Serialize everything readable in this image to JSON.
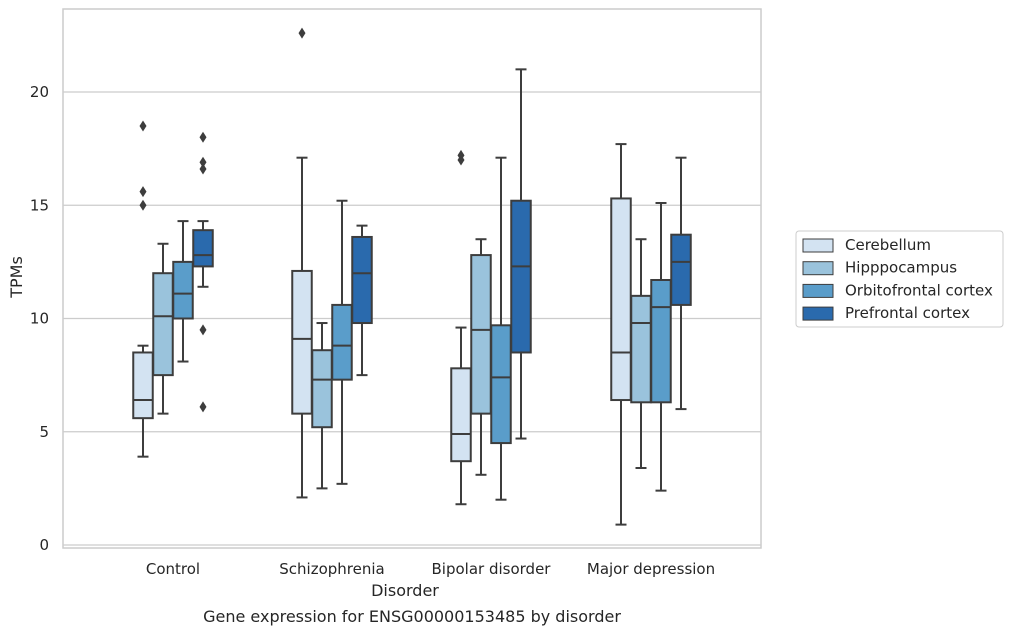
{
  "caption": "Gene expression for ENSG00000153485 by disorder",
  "chart_data": {
    "type": "box",
    "xlabel": "Disorder",
    "ylabel": "TPMs",
    "ylim": [
      -0.2,
      23.4
    ],
    "yticks": [
      0,
      5,
      10,
      15,
      20
    ],
    "grid": "horizontal",
    "legend_position": "right",
    "categories": [
      "Control",
      "Schizophrenia",
      "Bipolar disorder",
      "Major depression"
    ],
    "series": [
      {
        "name": "Cerebellum",
        "color": "#d3e3f2",
        "boxes": [
          {
            "whisker_low": 3.9,
            "q1": 5.6,
            "median": 6.4,
            "q3": 8.5,
            "whisker_high": 8.8,
            "outliers": [
              15.0,
              15.6,
              18.5
            ]
          },
          {
            "whisker_low": 2.1,
            "q1": 5.8,
            "median": 9.1,
            "q3": 12.1,
            "whisker_high": 17.1,
            "outliers": [
              22.6
            ]
          },
          {
            "whisker_low": 1.8,
            "q1": 3.7,
            "median": 4.9,
            "q3": 7.8,
            "whisker_high": 9.6,
            "outliers": [
              17.0,
              17.2
            ]
          },
          {
            "whisker_low": 0.9,
            "q1": 6.4,
            "median": 8.5,
            "q3": 15.3,
            "whisker_high": 17.7,
            "outliers": []
          }
        ]
      },
      {
        "name": "Hipppocampus",
        "color": "#9ac3dc",
        "boxes": [
          {
            "whisker_low": 5.8,
            "q1": 7.5,
            "median": 10.1,
            "q3": 12.0,
            "whisker_high": 13.3,
            "outliers": []
          },
          {
            "whisker_low": 2.5,
            "q1": 5.2,
            "median": 7.3,
            "q3": 8.6,
            "whisker_high": 9.8,
            "outliers": []
          },
          {
            "whisker_low": 3.1,
            "q1": 5.8,
            "median": 9.5,
            "q3": 12.8,
            "whisker_high": 13.5,
            "outliers": []
          },
          {
            "whisker_low": 3.4,
            "q1": 6.3,
            "median": 9.8,
            "q3": 11.0,
            "whisker_high": 13.5,
            "outliers": []
          }
        ]
      },
      {
        "name": "Orbitofrontal cortex",
        "color": "#5a9dca",
        "boxes": [
          {
            "whisker_low": 8.1,
            "q1": 10.0,
            "median": 11.1,
            "q3": 12.5,
            "whisker_high": 14.3,
            "outliers": []
          },
          {
            "whisker_low": 2.7,
            "q1": 7.3,
            "median": 8.8,
            "q3": 10.6,
            "whisker_high": 15.2,
            "outliers": []
          },
          {
            "whisker_low": 2.0,
            "q1": 4.5,
            "median": 7.4,
            "q3": 9.7,
            "whisker_high": 17.1,
            "outliers": []
          },
          {
            "whisker_low": 2.4,
            "q1": 6.3,
            "median": 10.5,
            "q3": 11.7,
            "whisker_high": 15.1,
            "outliers": []
          }
        ]
      },
      {
        "name": "Prefrontal cortex",
        "color": "#2a6aad",
        "boxes": [
          {
            "whisker_low": 11.4,
            "q1": 12.3,
            "median": 12.8,
            "q3": 13.9,
            "whisker_high": 14.3,
            "outliers": [
              6.1,
              9.5,
              16.6,
              16.9,
              18.0
            ]
          },
          {
            "whisker_low": 7.5,
            "q1": 9.8,
            "median": 12.0,
            "q3": 13.6,
            "whisker_high": 14.1,
            "outliers": []
          },
          {
            "whisker_low": 4.7,
            "q1": 8.5,
            "median": 12.3,
            "q3": 15.2,
            "whisker_high": 21.0,
            "outliers": []
          },
          {
            "whisker_low": 6.0,
            "q1": 10.6,
            "median": 12.5,
            "q3": 13.7,
            "whisker_high": 17.1,
            "outliers": []
          }
        ]
      }
    ]
  }
}
